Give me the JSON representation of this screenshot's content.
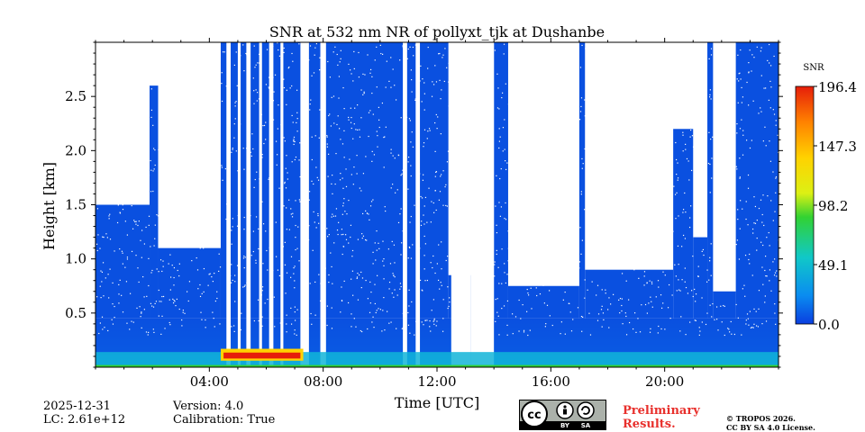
{
  "chart_data": {
    "type": "heatmap",
    "title": "SNR at 532 nm NR of pollyxt_tjk at Dushanbe",
    "xlabel": "Time [UTC]",
    "ylabel": "Height [km]",
    "xlim": [
      0,
      24
    ],
    "ylim": [
      0,
      3.0
    ],
    "x_ticks": [
      4,
      8,
      12,
      16,
      20
    ],
    "x_tick_labels": [
      "04:00",
      "08:00",
      "12:00",
      "16:00",
      "20:00"
    ],
    "y_ticks": [
      0.5,
      1.0,
      1.5,
      2.0,
      2.5
    ],
    "y_tick_labels": [
      "0.5",
      "1.0",
      "1.5",
      "2.0",
      "2.5"
    ],
    "colorbar": {
      "label": "SNR",
      "range": [
        0.0,
        196.4
      ],
      "ticks": [
        0.0,
        49.1,
        98.2,
        147.3,
        196.4
      ],
      "tick_labels": [
        "0.0",
        "49.1",
        "98.2",
        "147.3",
        "196.4"
      ],
      "colormap": [
        "#0a3ee0",
        "#0a8cf0",
        "#10c8c8",
        "#32d232",
        "#dcf014",
        "#ffd200",
        "#ff8200",
        "#e61e0a"
      ]
    },
    "background_color": "#0a50e0",
    "high_snr_layer": {
      "time_range": [
        4.4,
        7.3
      ],
      "height_km": 0.1,
      "peak_snr": 190
    },
    "no_data_gaps_hours": [
      [
        4.6,
        4.75
      ],
      [
        5.0,
        5.1
      ],
      [
        5.3,
        5.45
      ],
      [
        5.75,
        5.85
      ],
      [
        6.1,
        6.25
      ],
      [
        6.5,
        6.6
      ],
      [
        7.2,
        7.5
      ],
      [
        7.9,
        8.1
      ],
      [
        10.8,
        10.95
      ],
      [
        11.25,
        11.4
      ],
      [
        12.5,
        13.2
      ],
      [
        13.2,
        14.0
      ]
    ]
  },
  "footer": {
    "date": "2025-12-31",
    "lc": "LC: 2.61e+12",
    "version": "Version: 4.0",
    "calibration": "Calibration: True",
    "preliminary_line1": "Preliminary",
    "preliminary_line2": "Results.",
    "copyright_line1": "© TROPOS 2026.",
    "copyright_line2": "CC BY SA 4.0 License.",
    "license_badge": {
      "cc": "cc",
      "by": "BY",
      "sa": "SA"
    }
  }
}
